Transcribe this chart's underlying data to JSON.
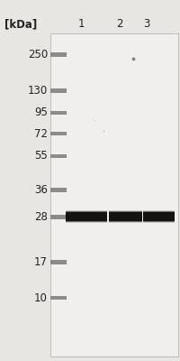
{
  "fig_bg": "#e8e6e3",
  "blot_bg": "#e0dedd",
  "inner_bg": "#f0efed",
  "title_text": "[kDa]",
  "lane_labels": [
    "1",
    "2",
    "3"
  ],
  "mw_labels": [
    "250",
    "130",
    "95",
    "72",
    "55",
    "36",
    "28",
    "17",
    "10"
  ],
  "mw_label_color": "#222222",
  "ladder_color": "#808080",
  "band_color": "#0a0a0a",
  "arrow_color": "#111111",
  "border_color": "#aaaaaa",
  "font_size": 8.5,
  "title_font_size": 8.5,
  "lane_font_size": 8.5,
  "dot_color": "#777777",
  "dot2_color": "#aaaaaa"
}
